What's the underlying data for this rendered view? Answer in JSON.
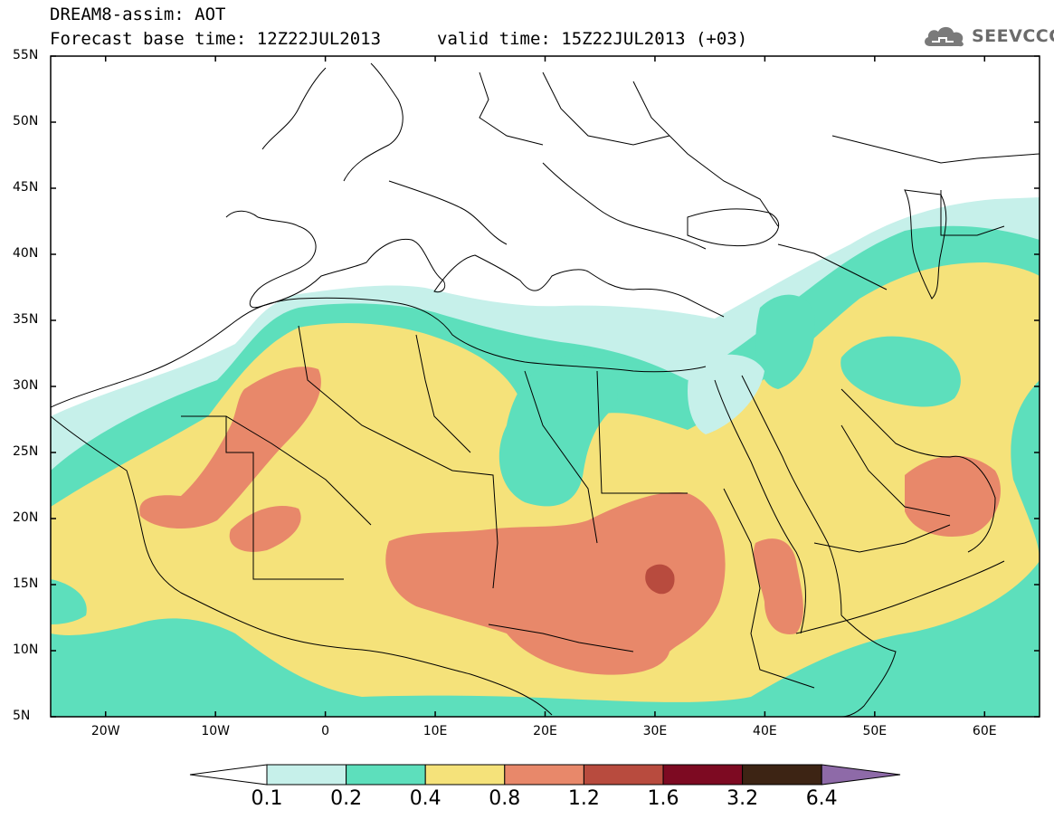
{
  "title": {
    "line1": "DREAM8-assim: AOT",
    "line2": "Forecast base time: 12Z22JUL2013",
    "line2b": "valid time: 15Z22JUL2013 (+03)"
  },
  "logo": {
    "icon": "cloud-icon",
    "text": "SEEVCCC"
  },
  "map": {
    "lat_labels": [
      "55N",
      "50N",
      "45N",
      "40N",
      "35N",
      "30N",
      "25N",
      "20N",
      "15N",
      "10N",
      "5N"
    ],
    "lon_labels": [
      "20W",
      "10W",
      "0",
      "10E",
      "20E",
      "30E",
      "40E",
      "50E",
      "60E"
    ],
    "lon_range": [
      -25,
      65
    ],
    "lat_range": [
      5,
      55
    ],
    "variable": "AOT",
    "colors": {
      "c01": "#c6f0ea",
      "c02": "#5ddfbc",
      "c04": "#f5e27a",
      "c08": "#e8886a",
      "c12": "#b84b3e",
      "c16": "#7d0a22",
      "c32": "#3d2414",
      "c64": "#8e6aa8"
    }
  },
  "colorbar": {
    "labels": [
      "0.1",
      "0.2",
      "0.4",
      "0.8",
      "1.2",
      "1.6",
      "3.2",
      "6.4"
    ],
    "colors": [
      "#ffffff",
      "#c6f0ea",
      "#5ddfbc",
      "#f5e27a",
      "#e8886a",
      "#b84b3e",
      "#7d0a22",
      "#3d2414",
      "#8e6aa8"
    ]
  }
}
